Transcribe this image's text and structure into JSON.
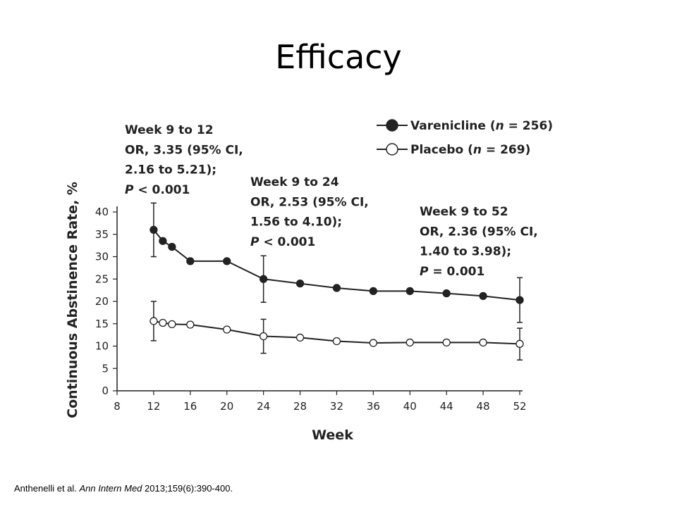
{
  "slide": {
    "title": "Efficacy"
  },
  "citation": {
    "authors": "Anthenelli et al. ",
    "journal": "Ann Intern Med",
    "ref": " 2013;159(6):390-400."
  },
  "colors": {
    "axis": "#222222",
    "varenicline": "#222222",
    "placebo_fill": "#ffffff",
    "placebo_stroke": "#222222"
  },
  "chart_data": {
    "type": "line",
    "xlabel": "Week",
    "ylabel": "Continuous Abstinence Rate, %",
    "xlim": [
      8,
      52
    ],
    "ylim": [
      0,
      40
    ],
    "xticks": [
      8,
      12,
      16,
      20,
      24,
      28,
      32,
      36,
      40,
      44,
      48,
      52
    ],
    "yticks": [
      0,
      5,
      10,
      15,
      20,
      25,
      30,
      35,
      40
    ],
    "legend_position": "top-right",
    "grid": false,
    "series": [
      {
        "name": "Varenicline (n = 256)",
        "legend_text": "Varenicline (",
        "legend_n": "n",
        "legend_rest": " = 256)",
        "marker": "filled-circle",
        "x": [
          12,
          13,
          14,
          16,
          20,
          24,
          28,
          32,
          36,
          40,
          44,
          48,
          52
        ],
        "y": [
          36.0,
          33.5,
          32.2,
          29.0,
          29.0,
          25.0,
          24.0,
          23.0,
          22.3,
          22.3,
          21.8,
          21.2,
          20.3
        ],
        "errors": [
          {
            "x": 12,
            "low": 30.0,
            "high": 42.0
          },
          {
            "x": 24,
            "low": 19.8,
            "high": 30.2
          },
          {
            "x": 52,
            "low": 15.3,
            "high": 25.3
          }
        ]
      },
      {
        "name": "Placebo (n = 269)",
        "legend_text": "Placebo (",
        "legend_n": "n",
        "legend_rest": " = 269)",
        "marker": "open-circle",
        "x": [
          12,
          13,
          14,
          16,
          20,
          24,
          28,
          32,
          36,
          40,
          44,
          48,
          52
        ],
        "y": [
          15.6,
          15.2,
          14.9,
          14.8,
          13.7,
          12.2,
          11.9,
          11.1,
          10.7,
          10.8,
          10.8,
          10.8,
          10.5
        ],
        "errors": [
          {
            "x": 12,
            "low": 11.2,
            "high": 20.0
          },
          {
            "x": 24,
            "low": 8.4,
            "high": 16.0
          },
          {
            "x": 52,
            "low": 6.9,
            "high": 14.0
          }
        ]
      }
    ],
    "annotations": [
      {
        "id": "w12",
        "lines": [
          "Week 9 to 12",
          "OR, 3.35 (95% CI,",
          "2.16 to 5.21);"
        ],
        "p_label": "P",
        "p_value": " < 0.001"
      },
      {
        "id": "w24",
        "lines": [
          "Week 9 to 24",
          "OR, 2.53 (95% CI,",
          "1.56 to 4.10);"
        ],
        "p_label": "P",
        "p_value": " <  0.001"
      },
      {
        "id": "w52",
        "lines": [
          "Week 9 to 52",
          "OR, 2.36 (95% CI,",
          "1.40 to 3.98);"
        ],
        "p_label": "P",
        "p_value": " = 0.001"
      }
    ]
  }
}
